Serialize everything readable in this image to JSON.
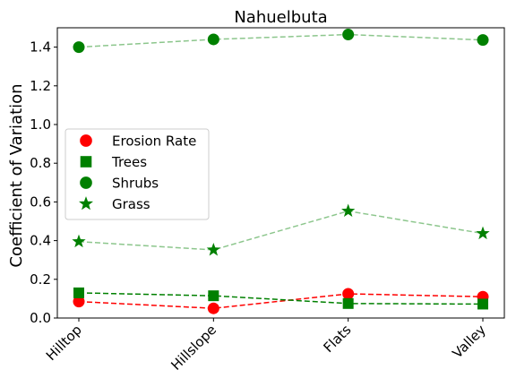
{
  "chart_data": {
    "type": "line",
    "title": "Nahuelbuta",
    "xlabel": "",
    "ylabel": "Coefficient of Variation",
    "categories": [
      "Hilltop",
      "Hillslope",
      "Flats",
      "Valley"
    ],
    "ylim": [
      0,
      1.5
    ],
    "yticks": [
      "0.0",
      "0.2",
      "0.4",
      "0.6",
      "0.8",
      "1.0",
      "1.2",
      "1.4"
    ],
    "grid": false,
    "legend_position": "center-left",
    "series": [
      {
        "name": "Erosion Rate",
        "values": [
          0.085,
          0.05,
          0.125,
          0.11
        ],
        "color": "#ff0000",
        "marker": "circle",
        "line_alpha": 1.0
      },
      {
        "name": "Trees",
        "values": [
          0.13,
          0.115,
          0.075,
          0.072
        ],
        "color": "#008000",
        "marker": "square",
        "line_alpha": 1.0
      },
      {
        "name": "Shrubs",
        "values": [
          1.4,
          1.44,
          1.465,
          1.437
        ],
        "color": "#008000",
        "marker": "circle",
        "line_alpha": 0.45
      },
      {
        "name": "Grass",
        "values": [
          0.395,
          0.352,
          0.553,
          0.437
        ],
        "color": "#008000",
        "marker": "star",
        "line_alpha": 0.45
      }
    ]
  }
}
